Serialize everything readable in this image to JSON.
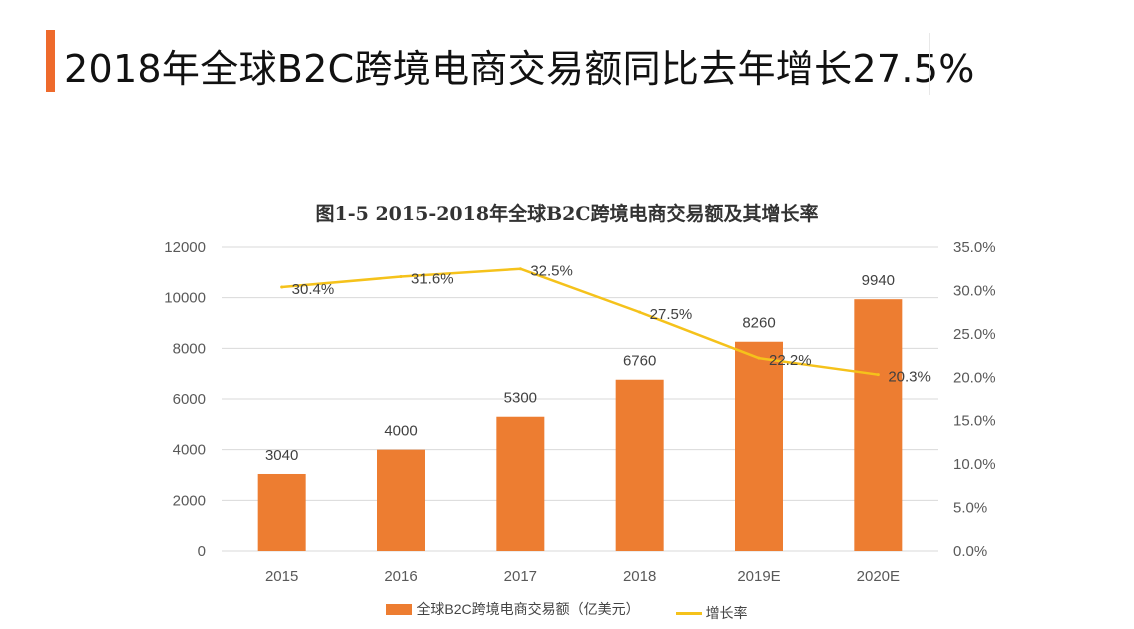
{
  "page": {
    "title": "2018年全球B2C跨境电商交易额同比去年增长27.5%"
  },
  "colors": {
    "accent": "#ee6a2c",
    "bar": "#ed7d31",
    "line": "#f5c21b",
    "grid": "#d9d9d9",
    "text": "#595959"
  },
  "chart_data": {
    "type": "bar",
    "title": "图1-5  2015-2018年全球B2C跨境电商交易额及其增长率",
    "categories": [
      "2015",
      "2016",
      "2017",
      "2018",
      "2019E",
      "2020E"
    ],
    "series": [
      {
        "name": "全球B2C跨境电商交易额（亿美元）",
        "type": "bar",
        "axis": "left",
        "values": [
          3040,
          4000,
          5300,
          6760,
          8260,
          9940
        ],
        "labels": [
          "3040",
          "4000",
          "5300",
          "6760",
          "8260",
          "9940"
        ]
      },
      {
        "name": "增长率",
        "type": "line",
        "axis": "right",
        "values": [
          30.4,
          31.6,
          32.5,
          27.5,
          22.2,
          20.3
        ],
        "labels": [
          "30.4%",
          "31.6%",
          "32.5%",
          "27.5%",
          "22.2%",
          "20.3%"
        ]
      }
    ],
    "ylim": [
      0,
      12000
    ],
    "y_ticks": [
      "0",
      "2000",
      "4000",
      "6000",
      "8000",
      "10000",
      "12000"
    ],
    "y2lim": [
      0,
      35
    ],
    "y2_ticks": [
      "0.0%",
      "5.0%",
      "10.0%",
      "15.0%",
      "20.0%",
      "25.0%",
      "30.0%",
      "35.0%"
    ],
    "grid": true,
    "legend": "bottom"
  }
}
